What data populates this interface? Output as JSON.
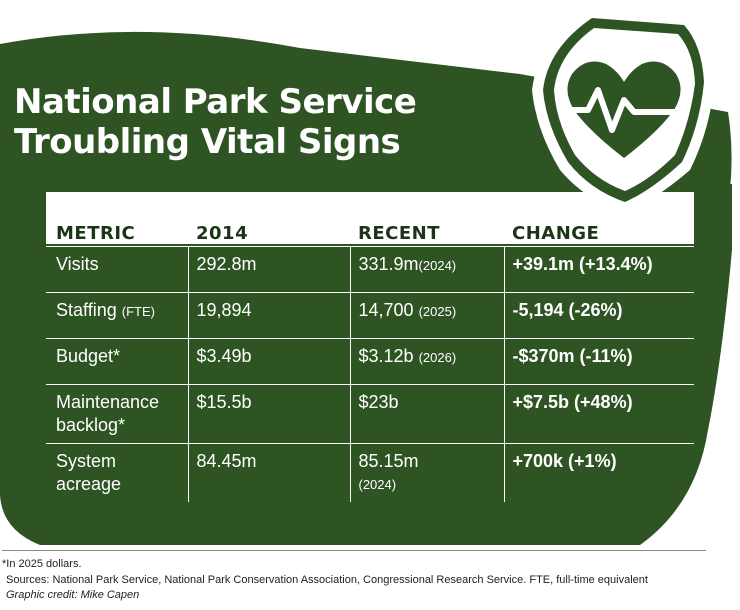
{
  "title": {
    "line1": "National Park Service",
    "line2": "Troubling Vital Signs"
  },
  "colors": {
    "dark_green": "#2f5424",
    "header_text": "#1c3417",
    "white": "#ffffff"
  },
  "emblem": {
    "icon": "heart-heartbeat-icon"
  },
  "table": {
    "headers": [
      "METRIC",
      "2014",
      "RECENT",
      "CHANGE"
    ],
    "rows": [
      {
        "metric": "Visits",
        "metric_note": "",
        "y2014": "292.8m",
        "recent": "331.9m",
        "recent_year": "(2024)",
        "change": "+39.1m (+13.4%)"
      },
      {
        "metric": "Staffing",
        "metric_note": "(FTE)",
        "y2014": "19,894",
        "recent": "14,700",
        "recent_year": "(2025)",
        "change": "-5,194 (-26%)"
      },
      {
        "metric": "Budget*",
        "metric_note": "",
        "y2014": "$3.49b",
        "recent": "$3.12b",
        "recent_year": "(2026)",
        "change": "-$370m (-11%)"
      },
      {
        "metric": "Maintenance backlog*",
        "metric_note": "",
        "y2014": "$15.5b",
        "recent": "$23b",
        "recent_year": "",
        "change": "+$7.5b (+48%)"
      },
      {
        "metric": "System acreage",
        "metric_note": "",
        "y2014": "84.45m",
        "recent": "85.15m",
        "recent_year": "(2024)",
        "change": "+700k (+1%)"
      }
    ]
  },
  "footer": {
    "note": "*In 2025 dollars.",
    "sources": "Sources: National Park Service, National Park Conservation Association, Congressional Research Service. FTE, full-time equivalent",
    "credit": "Graphic credit: Mike Capen"
  }
}
